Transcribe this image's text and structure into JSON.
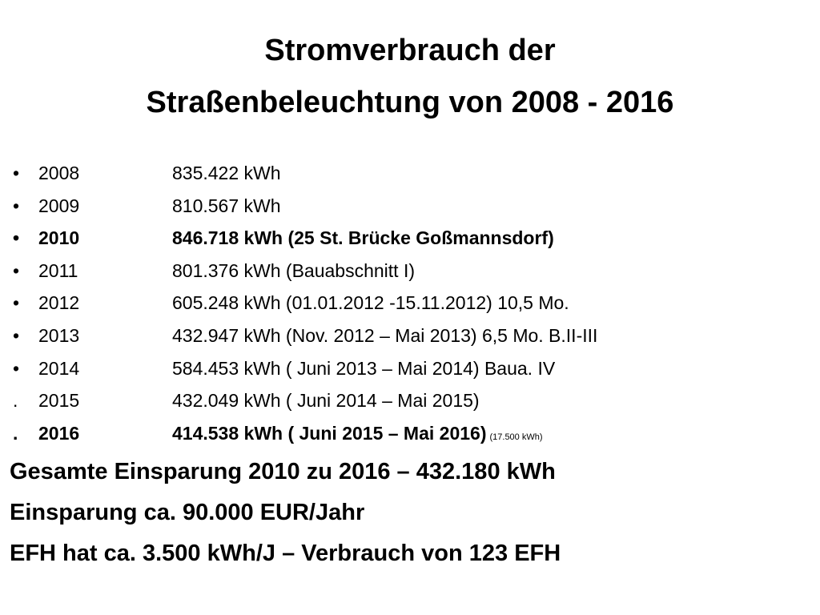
{
  "title": {
    "lines": [
      "Stromverbrauch der",
      "Straßenbeleuchtung von 2008 - 2016"
    ]
  },
  "items": [
    {
      "marker": "•",
      "year": "2008",
      "text": "835.422 kWh"
    },
    {
      "marker": "•",
      "year": "2009",
      "text": "810.567 kWh"
    },
    {
      "marker": "•",
      "year": "2010",
      "text": "846.718 kWh (25 St. Brücke Goßmannsdorf)"
    },
    {
      "marker": "•",
      "year": "2011",
      "text": "801.376 kWh (Bauabschnitt I)"
    },
    {
      "marker": "•",
      "year": "2012",
      "text": "605.248 kWh (01.01.2012 -15.11.2012) 10,5 Mo."
    },
    {
      "marker": "•",
      "year": "2013",
      "text": "432.947 kWh (Nov. 2012 – Mai 2013) 6,5 Mo. B.II-III"
    },
    {
      "marker": "•",
      "year": "2014",
      "text": "584.453 kWh ( Juni 2013 – Mai 2014) Baua. IV"
    },
    {
      "marker": ".",
      "year": "2015",
      "text": "432.049 kWh ( Juni 2014 – Mai 2015)"
    },
    {
      "marker": ".",
      "year": "2016",
      "text": "414.538 kWh ( Juni 2015 – Mai 2016)",
      "note": "(17.500 kWh)"
    }
  ],
  "summary": [
    "Gesamte Einsparung 2010 zu 2016 – 432.180 kWh",
    "Einsparung ca. 90.000 EUR/Jahr",
    "EFH hat ca. 3.500 kWh/J – Verbrauch von 123 EFH"
  ]
}
